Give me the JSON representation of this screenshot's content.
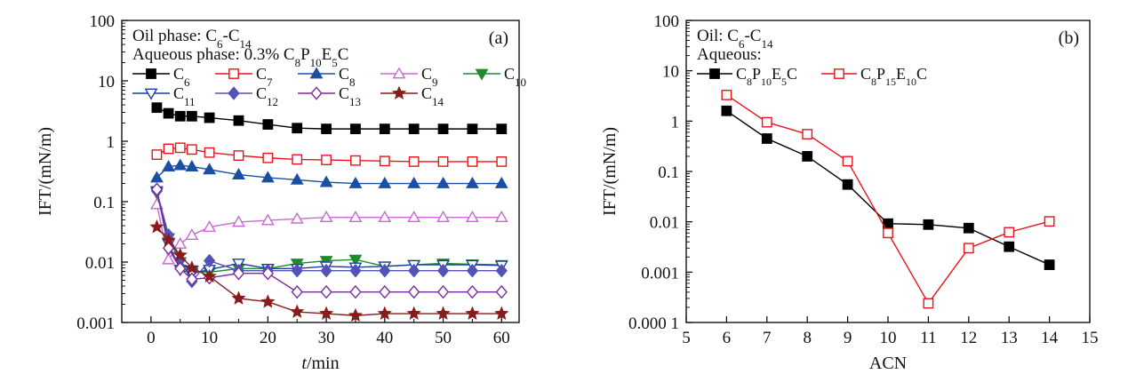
{
  "chart_data": [
    {
      "type": "line",
      "panel_label": "(a)",
      "annotations": [
        {
          "parts": [
            {
              "t": "Oil phase: C"
            },
            {
              "t": "6",
              "sub": true
            },
            {
              "t": "-C"
            },
            {
              "t": "14",
              "sub": true
            }
          ]
        },
        {
          "parts": [
            {
              "t": "Aqueous phase: 0.3% C"
            },
            {
              "t": "8",
              "sub": true
            },
            {
              "t": "P"
            },
            {
              "t": "10",
              "sub": true
            },
            {
              "t": "E"
            },
            {
              "t": "5",
              "sub": true
            },
            {
              "t": "C"
            }
          ]
        }
      ],
      "xlabel": {
        "italic": "t",
        "rest": "/min"
      },
      "ylabel": "IFT/(mN/m)",
      "xlim": [
        -5,
        63
      ],
      "ylim": [
        0.001,
        100
      ],
      "yscale": "log",
      "xticks": [
        0,
        10,
        20,
        30,
        40,
        50,
        60
      ],
      "xtick_labels": [
        "0",
        "10",
        "20",
        "30",
        "40",
        "50",
        "60"
      ],
      "yticks": [
        0.001,
        0.01,
        0.1,
        1,
        10,
        100
      ],
      "ytick_labels": [
        "0.001",
        "0.01",
        "0.1",
        "1",
        "10",
        "100"
      ],
      "x": [
        1,
        3,
        5,
        7,
        10,
        15,
        20,
        25,
        30,
        35,
        40,
        45,
        50,
        55,
        60
      ],
      "series": [
        {
          "name": "C",
          "sub": "6",
          "color": "#000000",
          "marker": "square-filled",
          "values": [
            3.6,
            2.9,
            2.6,
            2.6,
            2.45,
            2.2,
            1.9,
            1.65,
            1.6,
            1.6,
            1.6,
            1.6,
            1.6,
            1.6,
            1.6
          ]
        },
        {
          "name": "C",
          "sub": "7",
          "color": "#e8141a",
          "marker": "square-open",
          "values": [
            0.6,
            0.75,
            0.78,
            0.73,
            0.65,
            0.58,
            0.53,
            0.5,
            0.49,
            0.48,
            0.47,
            0.46,
            0.46,
            0.46,
            0.46
          ]
        },
        {
          "name": "C",
          "sub": "8",
          "color": "#1a4fa3",
          "marker": "triangle-up-filled",
          "values": [
            0.25,
            0.38,
            0.4,
            0.38,
            0.34,
            0.28,
            0.25,
            0.23,
            0.21,
            0.2,
            0.2,
            0.2,
            0.2,
            0.2,
            0.2
          ]
        },
        {
          "name": "C",
          "sub": "9",
          "color": "#c56bd1",
          "marker": "triangle-up-open",
          "values": [
            0.09,
            0.011,
            0.02,
            0.028,
            0.038,
            0.046,
            0.049,
            0.052,
            0.055,
            0.055,
            0.055,
            0.055,
            0.055,
            0.055,
            0.055
          ]
        },
        {
          "name": "C",
          "sub": "10",
          "color": "#1f8a2e",
          "marker": "triangle-down-filled",
          "values": [
            0.14,
            0.025,
            0.01,
            0.007,
            0.0068,
            0.0078,
            0.0078,
            0.0095,
            0.0105,
            0.011,
            0.0085,
            0.009,
            0.0095,
            0.0092,
            0.009
          ]
        },
        {
          "name": "C",
          "sub": "11",
          "color": "#1a3fa0",
          "marker": "triangle-down-open",
          "values": [
            0.15,
            0.02,
            0.0075,
            0.0065,
            0.0075,
            0.0095,
            0.0078,
            0.0078,
            0.0085,
            0.0082,
            0.0085,
            0.009,
            0.009,
            0.009,
            0.0088
          ]
        },
        {
          "name": "C",
          "sub": "12",
          "color": "#5252b8",
          "marker": "diamond-filled",
          "values": [
            0.15,
            0.028,
            0.011,
            0.0048,
            0.0105,
            0.0072,
            0.0072,
            0.0072,
            0.0072,
            0.0072,
            0.0072,
            0.0072,
            0.0072,
            0.0072,
            0.0072
          ]
        },
        {
          "name": "C",
          "sub": "13",
          "color": "#7a2c9e",
          "marker": "diamond-open",
          "values": [
            0.16,
            0.017,
            0.0078,
            0.0052,
            0.0055,
            0.0065,
            0.0065,
            0.0032,
            0.0032,
            0.0032,
            0.0032,
            0.0032,
            0.0032,
            0.0032,
            0.0032
          ]
        },
        {
          "name": "C",
          "sub": "14",
          "color": "#8b1a1a",
          "marker": "star",
          "values": [
            0.038,
            0.023,
            0.013,
            0.008,
            0.0058,
            0.0025,
            0.0022,
            0.0015,
            0.0014,
            0.0013,
            0.0014,
            0.0014,
            0.0014,
            0.0014,
            0.0014
          ]
        }
      ]
    },
    {
      "type": "line",
      "panel_label": "(b)",
      "annotations": [
        {
          "parts": [
            {
              "t": "Oil: C"
            },
            {
              "t": "6",
              "sub": true
            },
            {
              "t": "-C"
            },
            {
              "t": "14",
              "sub": true
            }
          ]
        },
        {
          "parts": [
            {
              "t": "Aqueous:"
            }
          ]
        }
      ],
      "xlabel": {
        "italic": "",
        "rest": "ACN"
      },
      "ylabel": "IFT/(mN/m)",
      "xlim": [
        5,
        15
      ],
      "ylim": [
        0.0001,
        100
      ],
      "yscale": "log",
      "xticks": [
        5,
        6,
        7,
        8,
        9,
        10,
        11,
        12,
        13,
        14,
        15
      ],
      "xtick_labels": [
        "5",
        "6",
        "7",
        "8",
        "9",
        "10",
        "11",
        "12",
        "13",
        "14",
        "15"
      ],
      "yticks": [
        0.0001,
        0.001,
        0.01,
        0.1,
        1,
        10,
        100
      ],
      "ytick_labels": [
        "0.000 1",
        "0.001",
        "0.01",
        "0.1",
        "1",
        "10",
        "100"
      ],
      "x": [
        6,
        7,
        8,
        9,
        10,
        11,
        12,
        13,
        14
      ],
      "series": [
        {
          "name_parts": [
            {
              "t": "C"
            },
            {
              "t": "8",
              "sub": true
            },
            {
              "t": "P"
            },
            {
              "t": "10",
              "sub": true
            },
            {
              "t": "E"
            },
            {
              "t": "5",
              "sub": true
            },
            {
              "t": "C"
            }
          ],
          "color": "#000000",
          "marker": "square-filled",
          "values": [
            1.6,
            0.45,
            0.2,
            0.055,
            0.0092,
            0.0088,
            0.0075,
            0.0032,
            0.0014
          ]
        },
        {
          "name_parts": [
            {
              "t": "C"
            },
            {
              "t": "8",
              "sub": true
            },
            {
              "t": "P"
            },
            {
              "t": "15",
              "sub": true
            },
            {
              "t": "E"
            },
            {
              "t": "10",
              "sub": true
            },
            {
              "t": "C"
            }
          ],
          "color": "#e8141a",
          "marker": "square-open",
          "values": [
            3.3,
            0.95,
            0.55,
            0.16,
            0.006,
            0.00024,
            0.003,
            0.0062,
            0.0102
          ]
        }
      ]
    }
  ]
}
